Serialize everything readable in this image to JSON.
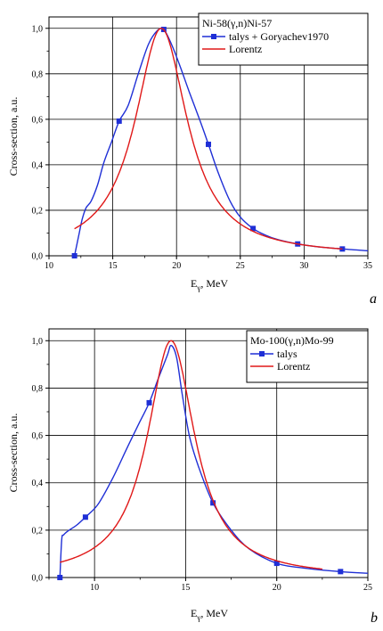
{
  "chart_data": [
    {
      "type": "line",
      "panel_label": "a",
      "xlabel_main": "E",
      "xlabel_sub": "γ",
      "xlabel_unit": ", MeV",
      "ylabel": "Cross-section, a.u.",
      "xlim": [
        10,
        35
      ],
      "ylim": [
        0,
        1.05
      ],
      "xticks": [
        "10",
        "15",
        "20",
        "25",
        "30",
        "35"
      ],
      "yticks": [
        "0,0",
        "0,2",
        "0,4",
        "0,6",
        "0,8",
        "1,0"
      ],
      "grid": true,
      "legend_position": "top-right",
      "legend_title": "Ni-58(γ,n)Ni-57",
      "colors": {
        "talys": "#1f2fd6",
        "lorentz": "#e01818"
      },
      "series": [
        {
          "name": "talys + Goryachev1970",
          "color": "#1f2fd6",
          "style": "line-markers",
          "x": [
            12.0,
            12.3,
            12.6,
            12.9,
            13.3,
            13.8,
            14.3,
            14.9,
            15.5,
            16.2,
            17.0,
            17.8,
            18.5,
            19.0,
            19.6,
            20.3,
            21.0,
            21.8,
            22.5,
            23.3,
            24.2,
            25.0,
            26.0,
            27.0,
            28.0,
            29.5,
            31.0,
            33.0,
            35.0
          ],
          "y": [
            0.0,
            0.08,
            0.16,
            0.21,
            0.24,
            0.31,
            0.41,
            0.5,
            0.592,
            0.66,
            0.8,
            0.93,
            0.99,
            0.995,
            0.93,
            0.83,
            0.72,
            0.6,
            0.49,
            0.36,
            0.24,
            0.17,
            0.12,
            0.09,
            0.07,
            0.052,
            0.04,
            0.03,
            0.022
          ],
          "markers_x": [
            12.0,
            15.5,
            19.0,
            22.5,
            26.0,
            29.5,
            33.0
          ],
          "markers_y": [
            0.0,
            0.592,
            0.995,
            0.49,
            0.12,
            0.052,
            0.03
          ]
        },
        {
          "name": "Lorentz",
          "color": "#e01818",
          "style": "line",
          "lorentz": {
            "center": 18.8,
            "width": 5.0,
            "amplitude": 1.0,
            "x_start": 12.0,
            "x_end": 33.0
          }
        }
      ]
    },
    {
      "type": "line",
      "panel_label": "b",
      "xlabel_main": "E",
      "xlabel_sub": "γ",
      "xlabel_unit": ", MeV",
      "ylabel": "Cross-section, a.u.",
      "xlim": [
        7.5,
        25
      ],
      "ylim": [
        0,
        1.05
      ],
      "xticks": [
        "10",
        "15",
        "20",
        "25"
      ],
      "yticks": [
        "0,0",
        "0,2",
        "0,4",
        "0,6",
        "0,8",
        "1,0"
      ],
      "grid": true,
      "legend_position": "top-right",
      "legend_title": "Mo-100(γ,n)Mo-99",
      "colors": {
        "talys": "#1f2fd6",
        "lorentz": "#e01818"
      },
      "series": [
        {
          "name": "talys",
          "color": "#1f2fd6",
          "style": "line-markers",
          "x": [
            8.1,
            8.2,
            8.3,
            8.6,
            9.0,
            9.5,
            10.2,
            11.0,
            11.8,
            12.5,
            13.0,
            13.5,
            14.0,
            14.2,
            14.5,
            14.8,
            15.2,
            15.7,
            16.5,
            17.5,
            18.5,
            20.0,
            21.5,
            23.5,
            25.0
          ],
          "y": [
            0.0,
            0.16,
            0.18,
            0.2,
            0.22,
            0.255,
            0.31,
            0.42,
            0.55,
            0.66,
            0.738,
            0.84,
            0.94,
            0.98,
            0.93,
            0.78,
            0.6,
            0.47,
            0.315,
            0.2,
            0.12,
            0.06,
            0.04,
            0.025,
            0.018
          ],
          "markers_x": [
            8.1,
            9.5,
            13.0,
            16.5,
            20.0,
            23.5
          ],
          "markers_y": [
            0.0,
            0.255,
            0.738,
            0.315,
            0.06,
            0.025
          ]
        },
        {
          "name": "Lorentz",
          "color": "#e01818",
          "style": "line",
          "lorentz": {
            "center": 14.2,
            "width": 3.2,
            "amplitude": 1.0,
            "x_start": 8.1,
            "x_end": 22.5
          }
        }
      ]
    }
  ]
}
